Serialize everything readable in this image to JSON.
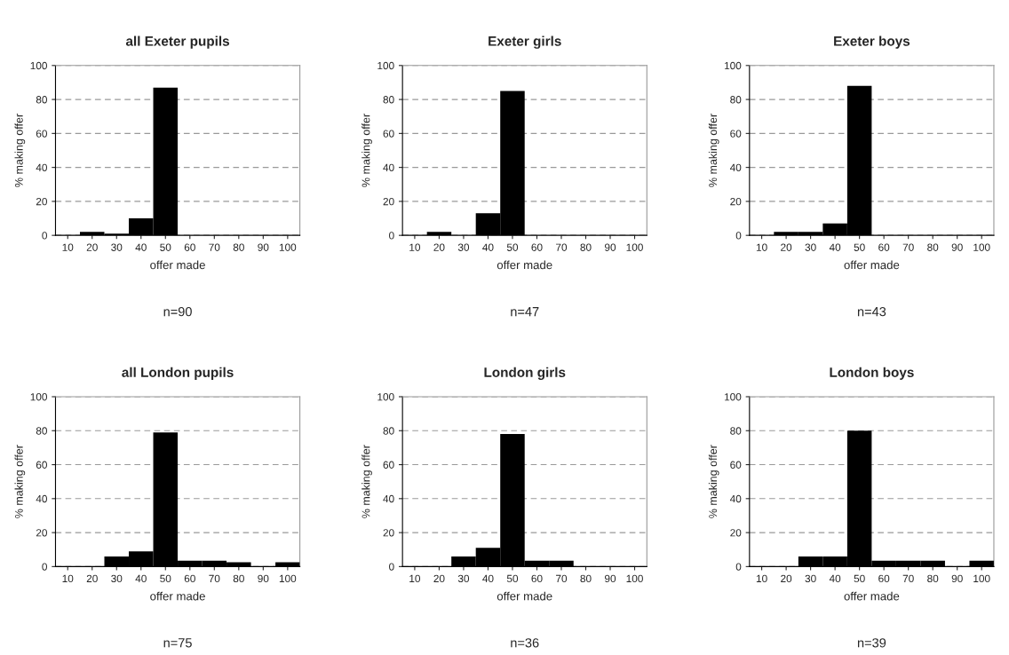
{
  "chart_data": [
    {
      "type": "bar",
      "title": "all Exeter pupils",
      "xlabel": "offer made",
      "ylabel": "% making offer",
      "categories": [
        "10",
        "20",
        "30",
        "40",
        "50",
        "60",
        "70",
        "80",
        "90",
        "100"
      ],
      "values": [
        0,
        2,
        1,
        10,
        87,
        0,
        0,
        0,
        0,
        0
      ],
      "color": "#000000",
      "ylim": [
        0,
        100
      ],
      "yticks": [
        0,
        20,
        40,
        60,
        80,
        100
      ],
      "grid": "y",
      "annotations": [
        "n=90"
      ]
    },
    {
      "type": "bar",
      "title": "Exeter girls",
      "xlabel": "offer made",
      "ylabel": "% making offer",
      "categories": [
        "10",
        "20",
        "30",
        "40",
        "50",
        "60",
        "70",
        "80",
        "90",
        "100"
      ],
      "values": [
        0,
        2,
        0,
        13,
        85,
        0,
        0,
        0,
        0,
        0
      ],
      "color": "#000000",
      "ylim": [
        0,
        100
      ],
      "yticks": [
        0,
        20,
        40,
        60,
        80,
        100
      ],
      "grid": "y",
      "annotations": [
        "n=47"
      ]
    },
    {
      "type": "bar",
      "title": "Exeter boys",
      "xlabel": "offer made",
      "ylabel": "% making offer",
      "categories": [
        "10",
        "20",
        "30",
        "40",
        "50",
        "60",
        "70",
        "80",
        "90",
        "100"
      ],
      "values": [
        0,
        2,
        2,
        7,
        88,
        0,
        0,
        0,
        0,
        0
      ],
      "color": "#000000",
      "ylim": [
        0,
        100
      ],
      "yticks": [
        0,
        20,
        40,
        60,
        80,
        100
      ],
      "grid": "y",
      "annotations": [
        "n=43"
      ]
    },
    {
      "type": "bar",
      "title": "all London pupils",
      "xlabel": "offer made",
      "ylabel": "% making offer",
      "categories": [
        "10",
        "20",
        "30",
        "40",
        "50",
        "60",
        "70",
        "80",
        "90",
        "100"
      ],
      "values": [
        0,
        0,
        6,
        9,
        79,
        3.5,
        3.5,
        2.5,
        0,
        2.5
      ],
      "color": "#000000",
      "ylim": [
        0,
        100
      ],
      "yticks": [
        0,
        20,
        40,
        60,
        80,
        100
      ],
      "grid": "y",
      "annotations": [
        "n=75"
      ]
    },
    {
      "type": "bar",
      "title": "London girls",
      "xlabel": "offer made",
      "ylabel": "% making offer",
      "categories": [
        "10",
        "20",
        "30",
        "40",
        "50",
        "60",
        "70",
        "80",
        "90",
        "100"
      ],
      "values": [
        0,
        0,
        6,
        11,
        78,
        3.5,
        3.5,
        0,
        0,
        0
      ],
      "color": "#000000",
      "ylim": [
        0,
        100
      ],
      "yticks": [
        0,
        20,
        40,
        60,
        80,
        100
      ],
      "grid": "y",
      "annotations": [
        "n=36"
      ]
    },
    {
      "type": "bar",
      "title": "London boys",
      "xlabel": "offer made",
      "ylabel": "% making offer",
      "categories": [
        "10",
        "20",
        "30",
        "40",
        "50",
        "60",
        "70",
        "80",
        "90",
        "100"
      ],
      "values": [
        0,
        0,
        6,
        6,
        80,
        3.5,
        3.5,
        3.5,
        0,
        3.5
      ],
      "color": "#000000",
      "ylim": [
        0,
        100
      ],
      "yticks": [
        0,
        20,
        40,
        60,
        80,
        100
      ],
      "grid": "y",
      "annotations": [
        "n=39"
      ]
    }
  ]
}
